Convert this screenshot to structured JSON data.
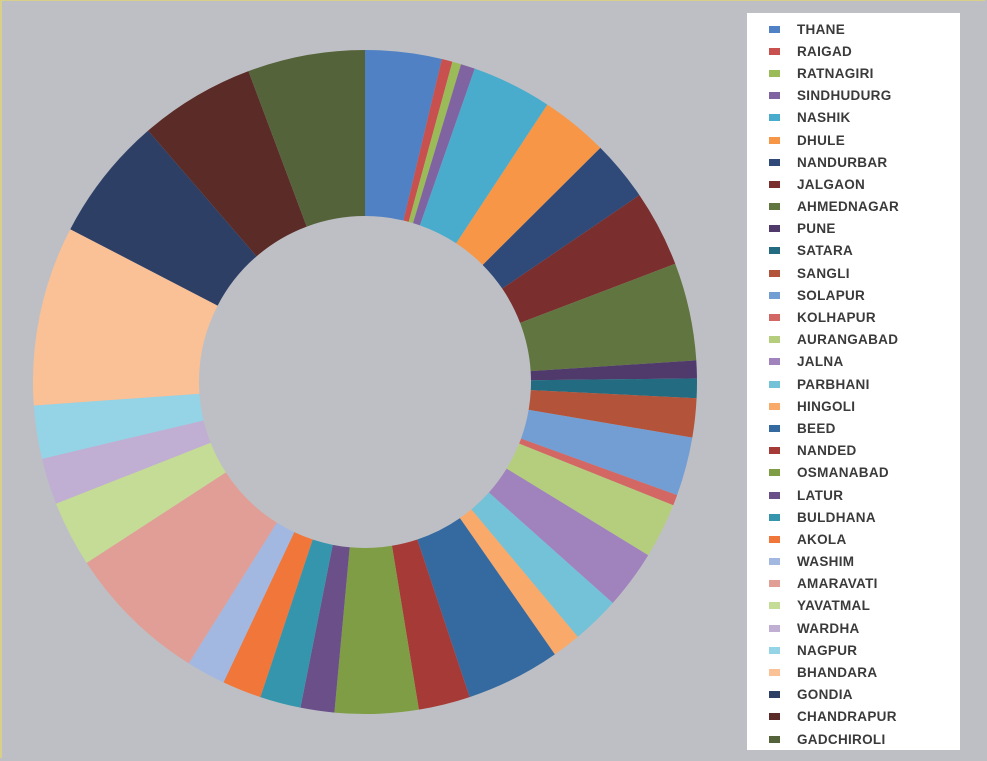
{
  "chart_data": {
    "type": "donut",
    "title": "",
    "legend_position": "right",
    "categories": [
      "THANE",
      "RAIGAD",
      "RATNAGIRI",
      "SINDHUDURG",
      "NASHIK",
      "DHULE",
      "NANDURBAR",
      "JALGAON",
      "AHMEDNAGAR",
      "PUNE",
      "SATARA",
      "SANGLI",
      "SOLAPUR",
      "KOLHAPUR",
      "AURANGABAD",
      "JALNA",
      "PARBHANI",
      "HINGOLI",
      "BEED",
      "NANDED",
      "OSMANABAD",
      "LATUR",
      "BULDHANA",
      "AKOLA",
      "WASHIM",
      "AMARAVATI",
      "YAVATMAL",
      "WARDHA",
      "NAGPUR",
      "BHANDARA",
      "GONDIA",
      "CHANDRAPUR",
      "GADCHIROLI"
    ],
    "values": [
      4.3,
      0.6,
      0.5,
      0.8,
      4.5,
      3.8,
      3.4,
      4.3,
      5.5,
      1.0,
      1.1,
      2.2,
      3.3,
      0.6,
      3.1,
      3.3,
      2.7,
      1.6,
      5.3,
      2.9,
      4.7,
      1.9,
      2.3,
      2.2,
      2.2,
      8.0,
      3.7,
      2.6,
      3.0,
      10.1,
      7.0,
      6.5,
      6.6
    ],
    "colors": [
      "#4f81c4",
      "#c8504e",
      "#9bbb59",
      "#8064a2",
      "#4aaccc",
      "#f79646",
      "#2f4a78",
      "#7a2e2d",
      "#617540",
      "#4f3a6b",
      "#236b80",
      "#b3543a",
      "#739ed3",
      "#d26764",
      "#b5ce7d",
      "#a083bd",
      "#73c2d8",
      "#f9a96a",
      "#356aa0",
      "#a63a37",
      "#7f9d44",
      "#6a4f88",
      "#3595ad",
      "#f0763a",
      "#a2b8e0",
      "#e19e96",
      "#c5dc97",
      "#c1aed3",
      "#95d3e6",
      "#fbc196",
      "#2e3f66",
      "#5a2b27",
      "#55633a"
    ]
  }
}
